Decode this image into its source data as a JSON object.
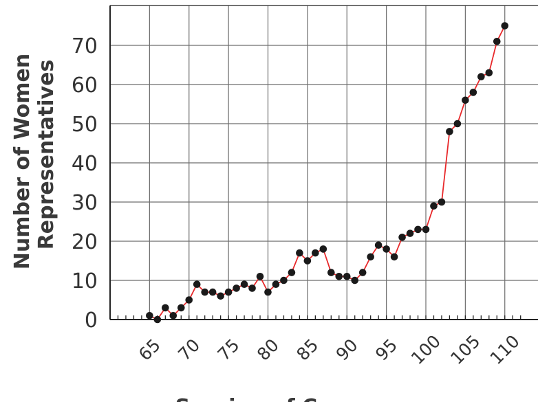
{
  "chart_data": {
    "type": "line",
    "title": "",
    "xlabel": "Session of Congress",
    "ylabel": "Number of Women Representatives",
    "ylabel_lines": [
      "Number of Women",
      "Representatives"
    ],
    "xlim": [
      60,
      112
    ],
    "ylim": [
      0,
      80
    ],
    "x_major_ticks": [
      65,
      70,
      75,
      80,
      85,
      90,
      95,
      100,
      105,
      110
    ],
    "y_major_ticks": [
      0,
      10,
      20,
      30,
      40,
      50,
      60,
      70
    ],
    "grid": true,
    "legend": "none",
    "line_color": "#e8292b",
    "marker_color": "#1a1a1a",
    "series": [
      {
        "x": [
          65,
          66,
          67,
          68,
          69,
          70,
          71,
          72,
          73,
          74,
          75,
          76,
          77,
          78,
          79,
          80,
          81,
          82,
          83,
          84,
          85,
          86,
          87,
          88,
          89,
          90,
          91,
          92,
          93,
          94,
          95,
          96,
          97,
          98,
          99,
          100,
          101,
          102,
          103,
          104,
          105,
          106,
          107,
          108,
          109,
          110
        ],
        "y": [
          1,
          0,
          3,
          1,
          3,
          5,
          9,
          7,
          7,
          6,
          7,
          8,
          9,
          8,
          11,
          7,
          9,
          10,
          12,
          17,
          15,
          17,
          18,
          12,
          11,
          11,
          10,
          12,
          16,
          19,
          18,
          16,
          21,
          22,
          23,
          23,
          29,
          30,
          48,
          50,
          56,
          58,
          62,
          63,
          71,
          75
        ]
      }
    ]
  }
}
